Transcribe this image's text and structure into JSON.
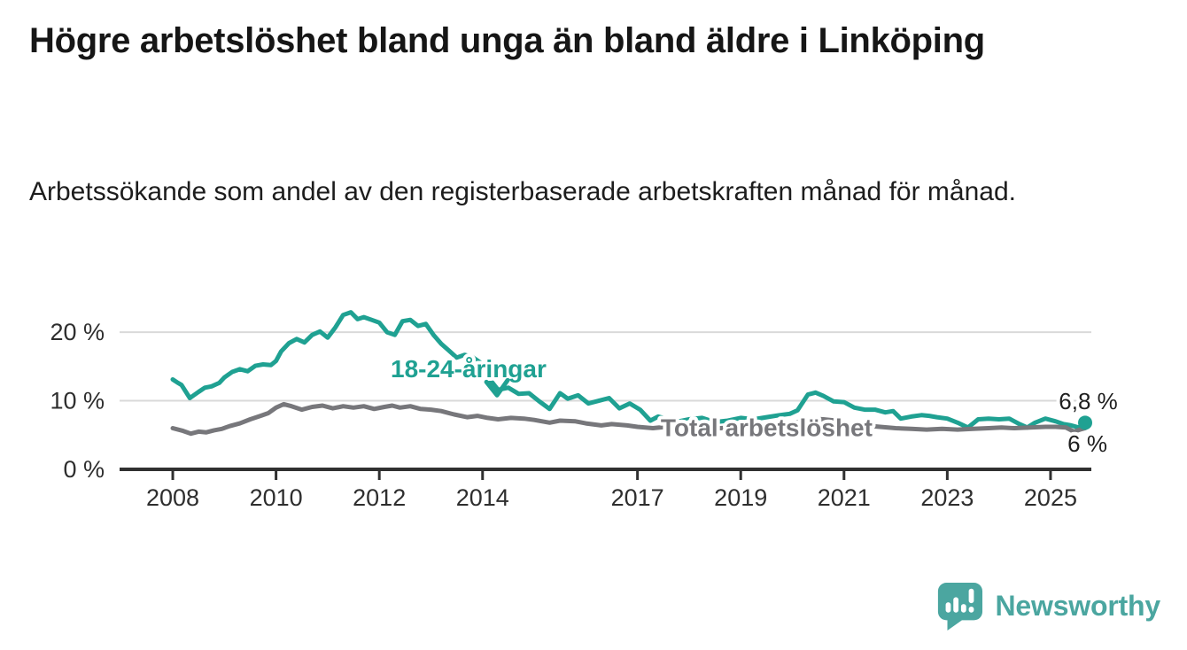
{
  "header": {
    "title": "Högre arbetslöshet bland unga än bland äldre i Linköping",
    "subtitle": "Arbetssökande som andel av den registerbaserade arbetskraften månad för månad."
  },
  "chart_data": {
    "type": "line",
    "title": "Högre arbetslöshet bland unga än bland äldre i Linköping",
    "subtitle": "Arbetssökande som andel av den registerbaserade arbetskraften månad för månad.",
    "x_axis": {
      "ticks": [
        2008,
        2010,
        2012,
        2014,
        2017,
        2019,
        2021,
        2023,
        2025
      ],
      "range_years": [
        2006.97,
        2025.79
      ]
    },
    "y_axis": {
      "unit": "%",
      "tick_labels": [
        "0 %",
        "10 %",
        "20 %"
      ],
      "tick_values": [
        0,
        10,
        20
      ],
      "gridline_values": [
        10,
        20
      ],
      "range": [
        0,
        23.5
      ]
    },
    "axis_color": "#303030",
    "grid_color": "#d9d9d9",
    "label_color": "#2e2e2e",
    "annotation_text_color": "#1f1f1f",
    "series": [
      {
        "name": "18-24-åringar",
        "color": "#1fa192",
        "end_dot": true,
        "points": [
          [
            2008.0,
            13.1
          ],
          [
            2008.08,
            12.7
          ],
          [
            2008.17,
            12.3
          ],
          [
            2008.33,
            10.4
          ],
          [
            2008.5,
            11.3
          ],
          [
            2008.62,
            11.9
          ],
          [
            2008.75,
            12.1
          ],
          [
            2008.9,
            12.6
          ],
          [
            2009.0,
            13.4
          ],
          [
            2009.15,
            14.2
          ],
          [
            2009.3,
            14.6
          ],
          [
            2009.45,
            14.3
          ],
          [
            2009.6,
            15.1
          ],
          [
            2009.75,
            15.3
          ],
          [
            2009.9,
            15.2
          ],
          [
            2010.0,
            15.8
          ],
          [
            2010.1,
            17.2
          ],
          [
            2010.25,
            18.4
          ],
          [
            2010.4,
            19.0
          ],
          [
            2010.55,
            18.5
          ],
          [
            2010.7,
            19.6
          ],
          [
            2010.85,
            20.1
          ],
          [
            2011.0,
            19.2
          ],
          [
            2011.15,
            20.7
          ],
          [
            2011.3,
            22.5
          ],
          [
            2011.45,
            22.9
          ],
          [
            2011.58,
            21.9
          ],
          [
            2011.7,
            22.2
          ],
          [
            2011.85,
            21.8
          ],
          [
            2012.0,
            21.4
          ],
          [
            2012.15,
            20.0
          ],
          [
            2012.3,
            19.6
          ],
          [
            2012.45,
            21.6
          ],
          [
            2012.6,
            21.8
          ],
          [
            2012.75,
            20.9
          ],
          [
            2012.9,
            21.2
          ],
          [
            2013.05,
            19.6
          ],
          [
            2013.2,
            18.3
          ],
          [
            2013.35,
            17.3
          ],
          [
            2013.5,
            16.3
          ],
          [
            2013.65,
            16.7
          ],
          [
            2013.8,
            16.4
          ],
          [
            2013.95,
            15.6
          ],
          [
            2014.1,
            13.5
          ],
          [
            2014.3,
            11.6
          ],
          [
            2014.5,
            11.9
          ],
          [
            2014.7,
            11.0
          ],
          [
            2014.9,
            11.1
          ],
          [
            2015.1,
            9.9
          ],
          [
            2015.3,
            8.8
          ],
          [
            2015.5,
            11.1
          ],
          [
            2015.65,
            10.3
          ],
          [
            2015.85,
            10.8
          ],
          [
            2016.05,
            9.6
          ],
          [
            2016.25,
            10.0
          ],
          [
            2016.45,
            10.4
          ],
          [
            2016.65,
            8.9
          ],
          [
            2016.85,
            9.6
          ],
          [
            2017.05,
            8.7
          ],
          [
            2017.25,
            7.1
          ],
          [
            2017.4,
            7.7
          ],
          [
            2017.6,
            7.3
          ],
          [
            2017.8,
            7.0
          ],
          [
            2018.0,
            7.3
          ],
          [
            2018.25,
            7.5
          ],
          [
            2018.5,
            6.9
          ],
          [
            2018.75,
            7.1
          ],
          [
            2019.0,
            7.5
          ],
          [
            2019.25,
            7.3
          ],
          [
            2019.5,
            7.6
          ],
          [
            2019.75,
            7.9
          ],
          [
            2019.95,
            8.1
          ],
          [
            2020.1,
            8.6
          ],
          [
            2020.3,
            10.9
          ],
          [
            2020.45,
            11.2
          ],
          [
            2020.6,
            10.7
          ],
          [
            2020.8,
            9.9
          ],
          [
            2021.0,
            9.8
          ],
          [
            2021.2,
            9.0
          ],
          [
            2021.4,
            8.7
          ],
          [
            2021.6,
            8.7
          ],
          [
            2021.8,
            8.3
          ],
          [
            2021.95,
            8.5
          ],
          [
            2022.1,
            7.4
          ],
          [
            2022.3,
            7.7
          ],
          [
            2022.5,
            7.9
          ],
          [
            2022.65,
            7.8
          ],
          [
            2022.8,
            7.6
          ],
          [
            2023.0,
            7.4
          ],
          [
            2023.2,
            6.8
          ],
          [
            2023.4,
            6.1
          ],
          [
            2023.6,
            7.3
          ],
          [
            2023.8,
            7.4
          ],
          [
            2024.0,
            7.3
          ],
          [
            2024.2,
            7.4
          ],
          [
            2024.4,
            6.6
          ],
          [
            2024.55,
            6.1
          ],
          [
            2024.7,
            6.8
          ],
          [
            2024.9,
            7.4
          ],
          [
            2025.1,
            7.0
          ],
          [
            2025.25,
            6.6
          ],
          [
            2025.4,
            6.4
          ],
          [
            2025.55,
            6.1
          ],
          [
            2025.67,
            6.8
          ]
        ]
      },
      {
        "name": "Total arbetslöshet",
        "color": "#77777b",
        "end_dot": false,
        "points": [
          [
            2008.0,
            6.0
          ],
          [
            2008.2,
            5.6
          ],
          [
            2008.35,
            5.2
          ],
          [
            2008.5,
            5.5
          ],
          [
            2008.65,
            5.4
          ],
          [
            2008.8,
            5.7
          ],
          [
            2008.95,
            5.9
          ],
          [
            2009.1,
            6.3
          ],
          [
            2009.3,
            6.7
          ],
          [
            2009.5,
            7.3
          ],
          [
            2009.7,
            7.8
          ],
          [
            2009.85,
            8.2
          ],
          [
            2010.0,
            9.0
          ],
          [
            2010.15,
            9.5
          ],
          [
            2010.3,
            9.2
          ],
          [
            2010.5,
            8.7
          ],
          [
            2010.7,
            9.1
          ],
          [
            2010.9,
            9.3
          ],
          [
            2011.1,
            8.9
          ],
          [
            2011.3,
            9.2
          ],
          [
            2011.5,
            9.0
          ],
          [
            2011.7,
            9.2
          ],
          [
            2011.9,
            8.8
          ],
          [
            2012.1,
            9.1
          ],
          [
            2012.25,
            9.3
          ],
          [
            2012.4,
            9.0
          ],
          [
            2012.6,
            9.2
          ],
          [
            2012.8,
            8.8
          ],
          [
            2013.0,
            8.7
          ],
          [
            2013.2,
            8.5
          ],
          [
            2013.45,
            8.0
          ],
          [
            2013.7,
            7.6
          ],
          [
            2013.9,
            7.8
          ],
          [
            2014.1,
            7.5
          ],
          [
            2014.3,
            7.3
          ],
          [
            2014.55,
            7.5
          ],
          [
            2014.8,
            7.4
          ],
          [
            2015.0,
            7.2
          ],
          [
            2015.3,
            6.8
          ],
          [
            2015.5,
            7.1
          ],
          [
            2015.8,
            7.0
          ],
          [
            2016.0,
            6.7
          ],
          [
            2016.3,
            6.4
          ],
          [
            2016.5,
            6.6
          ],
          [
            2016.8,
            6.4
          ],
          [
            2017.0,
            6.2
          ],
          [
            2017.3,
            6.0
          ],
          [
            2017.55,
            6.2
          ],
          [
            2017.8,
            6.0
          ],
          [
            2018.05,
            6.1
          ],
          [
            2018.3,
            5.9
          ],
          [
            2018.6,
            6.0
          ],
          [
            2018.9,
            6.1
          ],
          [
            2019.2,
            6.2
          ],
          [
            2019.5,
            6.3
          ],
          [
            2019.8,
            6.5
          ],
          [
            2020.1,
            6.9
          ],
          [
            2020.35,
            7.4
          ],
          [
            2020.6,
            7.3
          ],
          [
            2020.85,
            7.1
          ],
          [
            2021.1,
            6.6
          ],
          [
            2021.4,
            6.4
          ],
          [
            2021.7,
            6.2
          ],
          [
            2022.0,
            6.0
          ],
          [
            2022.3,
            5.9
          ],
          [
            2022.6,
            5.8
          ],
          [
            2022.9,
            5.9
          ],
          [
            2023.2,
            5.8
          ],
          [
            2023.5,
            5.9
          ],
          [
            2023.8,
            6.0
          ],
          [
            2024.05,
            6.1
          ],
          [
            2024.3,
            6.0
          ],
          [
            2024.6,
            6.1
          ],
          [
            2024.9,
            6.2
          ],
          [
            2025.1,
            6.2
          ],
          [
            2025.3,
            6.1
          ],
          [
            2025.45,
            5.5
          ],
          [
            2025.57,
            5.8
          ],
          [
            2025.67,
            6.0
          ]
        ]
      }
    ],
    "annotations": {
      "series1_label": {
        "text": "18-24-åringar",
        "x": 2012.22,
        "y": 16.0,
        "color": "#1fa192",
        "arrow_tip": {
          "x": 2014.28,
          "y": 10.8
        }
      },
      "series2_label": {
        "text": "Total arbetslöshet",
        "x": 2017.45,
        "y": 6.05,
        "color": "#77777b"
      },
      "end_value_top": {
        "text": "6,8 %",
        "x": 2025.16,
        "y": 8.78
      },
      "end_value_bottom": {
        "text": "6 %",
        "x": 2025.33,
        "y": 2.58
      }
    },
    "legend_position": "inline-labels",
    "grid": "horizontal-only"
  },
  "footer": {
    "brand": "Newsworthy",
    "brand_color": "#4ba6a0",
    "logo_icon": "bar-chart-speech-bubble"
  }
}
